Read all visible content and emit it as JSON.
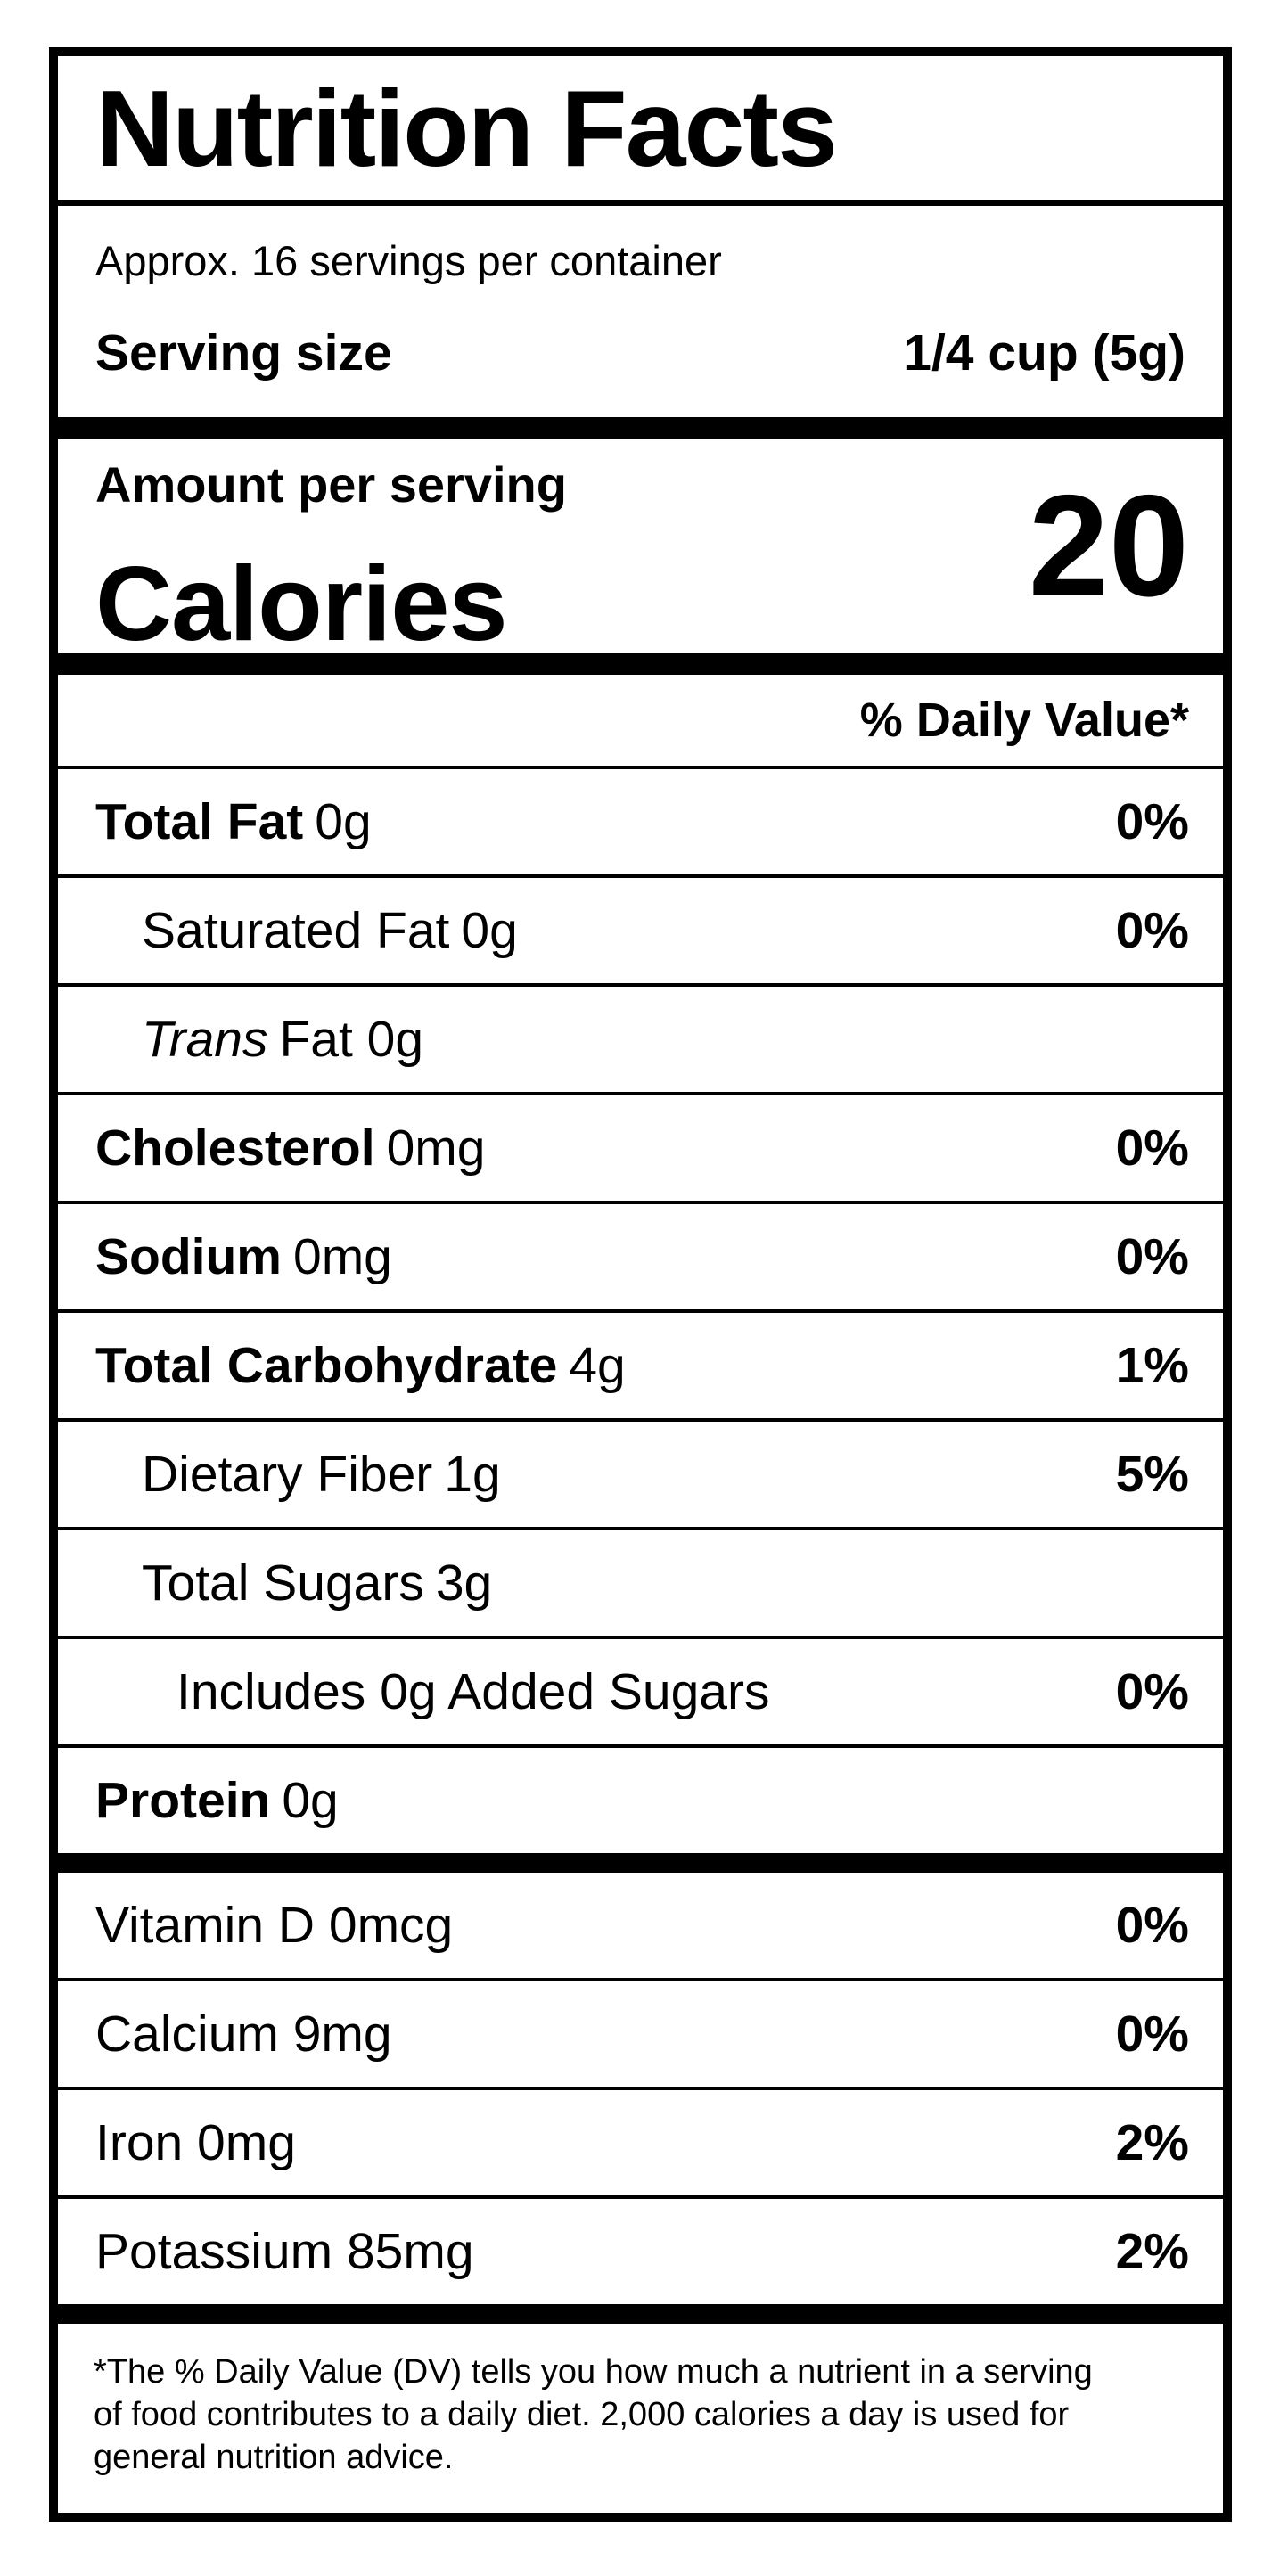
{
  "label": {
    "title": "Nutrition Facts",
    "servings_per_container": "Approx. 16 servings per container",
    "serving_size_label": "Serving size",
    "serving_size_value": "1/4 cup (5g)",
    "amount_per_serving": "Amount per serving",
    "calories_label": "Calories",
    "calories_value": "20",
    "daily_value_header": "% Daily Value*",
    "nutrients": [
      {
        "lead": "Total Fat",
        "rest": "0g",
        "dv": "0%"
      },
      {
        "lead": "Saturated Fat",
        "rest": "0g",
        "dv": "0%"
      },
      {
        "lead": "Trans",
        "rest": "Fat 0g",
        "dv": ""
      },
      {
        "lead": "Cholesterol",
        "rest": "0mg",
        "dv": "0%"
      },
      {
        "lead": "Sodium",
        "rest": "0mg",
        "dv": "0%"
      },
      {
        "lead": "Total Carbohydrate",
        "rest": "4g",
        "dv": "1%"
      },
      {
        "lead": "Dietary Fiber",
        "rest": "1g",
        "dv": "5%"
      },
      {
        "lead": "Total Sugars",
        "rest": "3g",
        "dv": ""
      },
      {
        "lead": "Includes 0g Added Sugars",
        "rest": "",
        "dv": "0%"
      },
      {
        "lead": "Protein",
        "rest": "0g",
        "dv": ""
      }
    ],
    "vitamins": [
      {
        "text": "Vitamin D 0mcg",
        "dv": "0%"
      },
      {
        "text": "Calcium 9mg",
        "dv": "0%"
      },
      {
        "text": "Iron 0mg",
        "dv": "2%"
      },
      {
        "text": "Potassium 85mg",
        "dv": "2%"
      }
    ],
    "footnote_lines": [
      "*The % Daily Value (DV) tells you how much a nutrient in a serving",
      "of food contributes to a daily diet. 2,000 calories a day is used for",
      "general nutrition advice."
    ]
  },
  "colors": {
    "ink": "#000000",
    "paper": "#ffffff"
  }
}
